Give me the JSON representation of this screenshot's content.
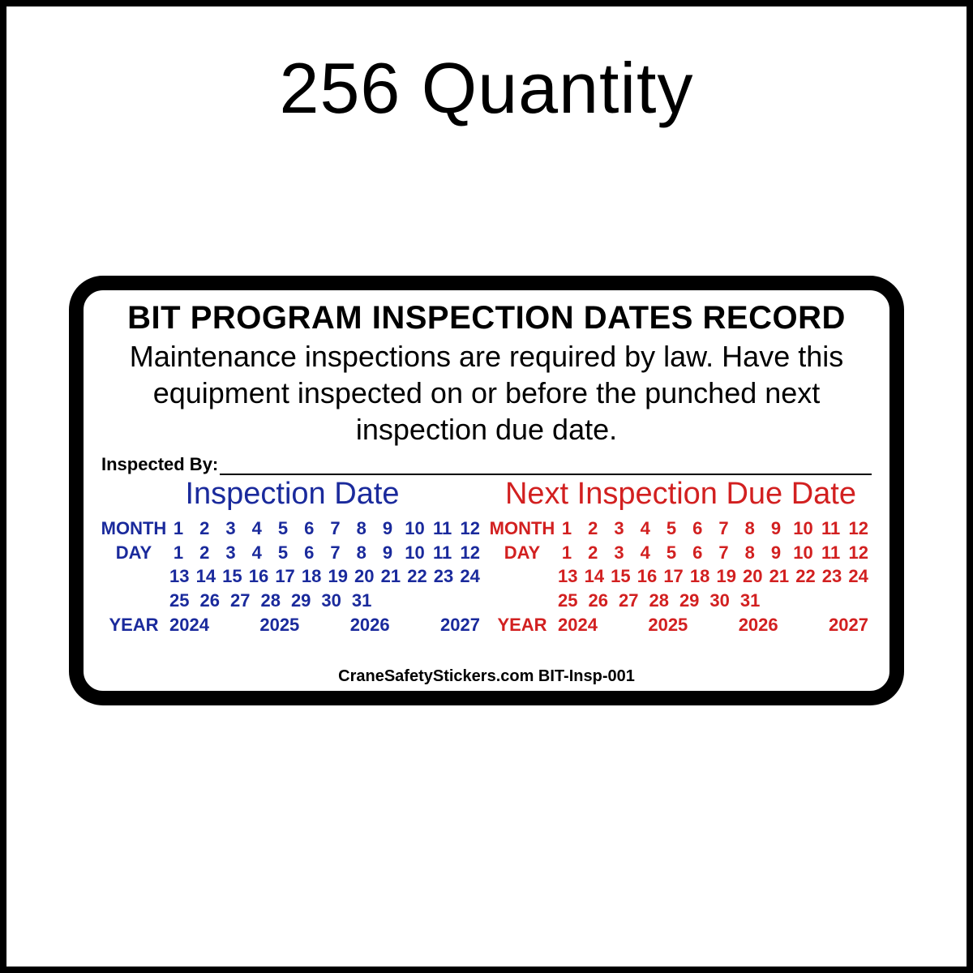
{
  "quantity_text": "256 Quantity",
  "sticker": {
    "title": "BIT PROGRAM INSPECTION DATES RECORD",
    "subtitle": "Maintenance inspections are required by law. Have this equipment inspected on or before the punched next inspection due date.",
    "inspected_by_label": "Inspected By:",
    "footer": "CraneSafetyStickers.com   BIT-Insp-001",
    "colors": {
      "blue": "#1a2a9c",
      "red": "#d22020",
      "black": "#000000",
      "background": "#ffffff",
      "border": "#000000"
    },
    "typography": {
      "title_fontsize": 40,
      "subtitle_fontsize": 36,
      "panel_title_fontsize": 38,
      "grid_fontsize": 22,
      "footer_fontsize": 20,
      "quantity_fontsize": 88
    },
    "panels": [
      {
        "key": "inspection",
        "title": "Inspection Date",
        "color": "#1a2a9c"
      },
      {
        "key": "next_due",
        "title": "Next Inspection Due Date",
        "color": "#d22020"
      }
    ],
    "labels": {
      "month": "MONTH",
      "day": "DAY",
      "year": "YEAR"
    },
    "months": [
      "1",
      "2",
      "3",
      "4",
      "5",
      "6",
      "7",
      "8",
      "9",
      "10",
      "11",
      "12"
    ],
    "days_row1": [
      "1",
      "2",
      "3",
      "4",
      "5",
      "6",
      "7",
      "8",
      "9",
      "10",
      "11",
      "12"
    ],
    "days_row2": [
      "13",
      "14",
      "15",
      "16",
      "17",
      "18",
      "19",
      "20",
      "21",
      "22",
      "23",
      "24"
    ],
    "days_row3": [
      "25",
      "26",
      "27",
      "28",
      "29",
      "30",
      "31"
    ],
    "years": [
      "2024",
      "2025",
      "2026",
      "2027"
    ]
  }
}
